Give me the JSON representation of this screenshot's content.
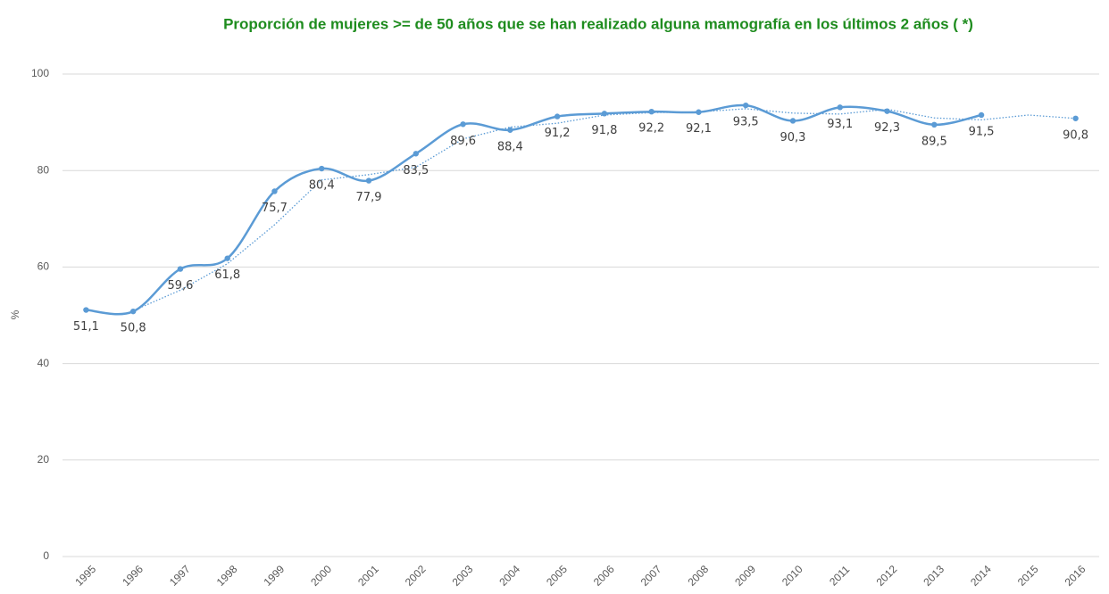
{
  "chart_data": {
    "type": "line",
    "title": "Proporción de mujeres >= de 50 años que se han realizado alguna mamografía en los últimos 2 años ( *)",
    "y_label": "%",
    "categories": [
      "1995",
      "1996",
      "1997",
      "1998",
      "1999",
      "2000",
      "2001",
      "2002",
      "2003",
      "2004",
      "2005",
      "2006",
      "2007",
      "2008",
      "2009",
      "2010",
      "2011",
      "2012",
      "2013",
      "2014",
      "2015",
      "2016"
    ],
    "series": [
      {
        "color": "#5b9bd5",
        "smooth": true,
        "markers": true,
        "values": [
          51.1,
          50.8,
          59.6,
          61.8,
          75.7,
          80.4,
          77.9,
          83.5,
          89.6,
          88.4,
          91.2,
          91.8,
          92.2,
          92.1,
          93.5,
          90.3,
          93.1,
          92.3,
          89.5,
          91.5,
          null,
          90.8
        ],
        "value_labels": [
          "51,1",
          "50,8",
          "59,6",
          "61,8",
          "75,7",
          "80,4",
          "77,9",
          "83,5",
          "89,6",
          "88,4",
          "91,2",
          "91,8",
          "92,2",
          "92,1",
          "93,5",
          "90,3",
          "93,1",
          "92,3",
          "89,5",
          "91,5",
          null,
          "90,8"
        ]
      },
      {
        "color": "#5b9bd5",
        "dotted": true,
        "values": [
          null,
          50.95,
          55.2,
          60.7,
          68.75,
          78.05,
          79.15,
          80.7,
          86.55,
          89.0,
          89.8,
          91.5,
          92.0,
          92.15,
          92.8,
          91.9,
          91.7,
          92.7,
          90.9,
          90.5,
          91.5,
          90.8
        ]
      }
    ],
    "ylim": [
      0,
      100
    ],
    "yticks": [
      0,
      20,
      40,
      60,
      80,
      100
    ],
    "grid": true
  }
}
